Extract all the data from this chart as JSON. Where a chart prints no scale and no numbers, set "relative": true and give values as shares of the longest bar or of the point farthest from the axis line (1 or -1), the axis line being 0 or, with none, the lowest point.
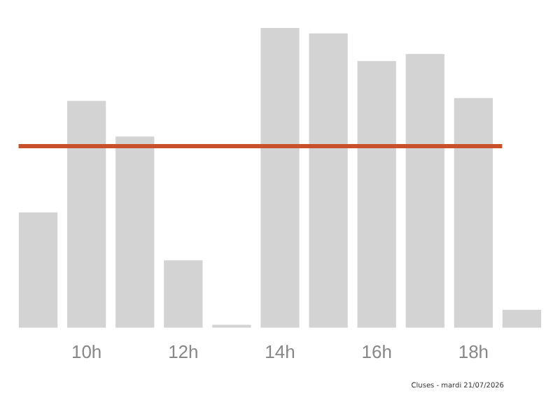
{
  "chart_data": {
    "type": "bar",
    "relative": true,
    "categories": [
      null,
      "10h",
      null,
      "12h",
      null,
      "14h",
      null,
      "16h",
      null,
      "18h",
      null
    ],
    "values": [
      0.385,
      0.757,
      0.638,
      0.225,
      0.01,
      1,
      0.982,
      0.89,
      0.913,
      0.766,
      0.06
    ],
    "color": "#d3d3d3",
    "ref_lines": [
      {
        "axis": "y",
        "value": 0.606,
        "color": "#c8502a"
      }
    ],
    "annotations": [
      "Cluses - mardi 21/07/2026"
    ],
    "grid": false,
    "legend": false
  }
}
